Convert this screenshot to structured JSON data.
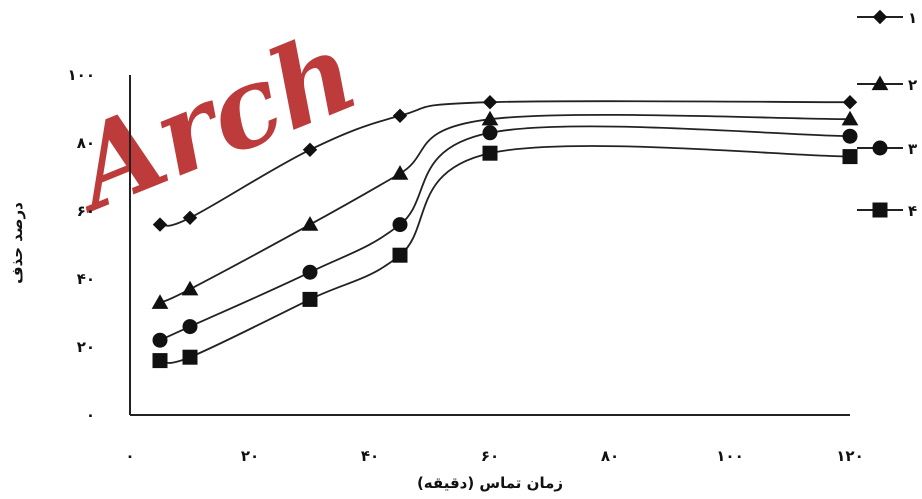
{
  "watermark": "Arch",
  "chart_data": {
    "type": "line",
    "xlabel": "زمان تماس (دقیقه)",
    "ylabel": "درصد حذف",
    "xlim": [
      0,
      120
    ],
    "ylim": [
      0,
      100
    ],
    "x_ticks": [
      0,
      20,
      40,
      60,
      80,
      100,
      120
    ],
    "x_tick_labels": [
      "۰",
      "۲۰",
      "۴۰",
      "۶۰",
      "۸۰",
      "۱۰۰",
      "۱۲۰"
    ],
    "y_ticks": [
      0,
      20,
      40,
      60,
      80,
      100
    ],
    "y_tick_labels": [
      "۰",
      "۲۰",
      "۴۰",
      "۶۰",
      "۸۰",
      "۱۰۰"
    ],
    "grid": false,
    "legend_position": "right",
    "series": [
      {
        "name": "۱",
        "marker": "diamond",
        "x": [
          5,
          10,
          30,
          45,
          60,
          120
        ],
        "y": [
          56,
          58,
          78,
          88,
          92,
          92
        ]
      },
      {
        "name": "۲",
        "marker": "triangle",
        "x": [
          5,
          10,
          30,
          45,
          60,
          120
        ],
        "y": [
          33,
          37,
          56,
          71,
          87,
          87
        ]
      },
      {
        "name": "۳",
        "marker": "circle",
        "x": [
          5,
          10,
          30,
          45,
          60,
          120
        ],
        "y": [
          22,
          26,
          42,
          56,
          83,
          82
        ]
      },
      {
        "name": "۴",
        "marker": "square",
        "x": [
          5,
          10,
          30,
          45,
          60,
          120
        ],
        "y": [
          16,
          17,
          34,
          47,
          77,
          76
        ]
      }
    ]
  }
}
